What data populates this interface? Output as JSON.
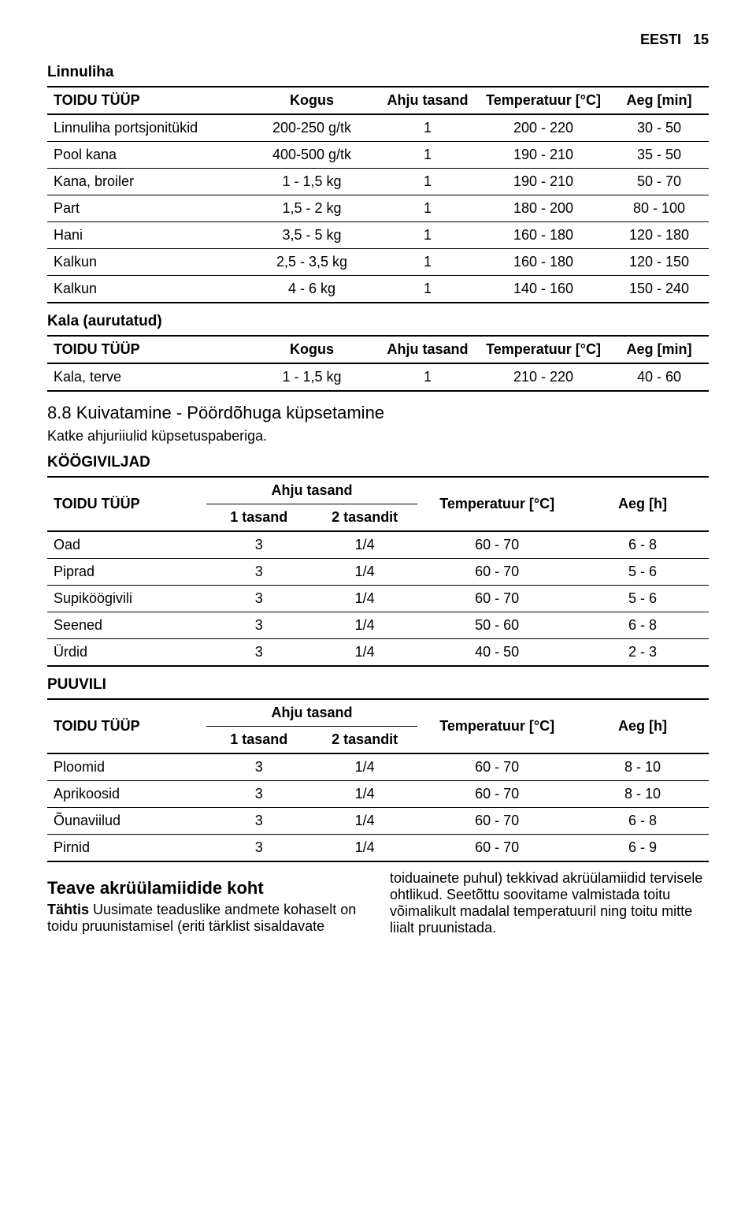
{
  "header": {
    "lang": "EESTI",
    "page": "15"
  },
  "linnuliha": {
    "title": "Linnuliha",
    "cols": [
      "TOIDU TÜÜP",
      "Kogus",
      "Ahju tasand",
      "Temperatuur [°C]",
      "Aeg [min]"
    ],
    "rows": [
      [
        "Linnuliha portsjonitükid",
        "200-250 g/tk",
        "1",
        "200 - 220",
        "30 - 50"
      ],
      [
        "Pool kana",
        "400-500 g/tk",
        "1",
        "190 - 210",
        "35 - 50"
      ],
      [
        "Kana, broiler",
        "1 - 1,5 kg",
        "1",
        "190 - 210",
        "50 - 70"
      ],
      [
        "Part",
        "1,5 - 2 kg",
        "1",
        "180 - 200",
        "80 - 100"
      ],
      [
        "Hani",
        "3,5 - 5 kg",
        "1",
        "160 - 180",
        "120 - 180"
      ],
      [
        "Kalkun",
        "2,5 - 3,5 kg",
        "1",
        "160 - 180",
        "120 - 150"
      ],
      [
        "Kalkun",
        "4 - 6 kg",
        "1",
        "140 - 160",
        "150 - 240"
      ]
    ]
  },
  "kala": {
    "title": "Kala (aurutatud)",
    "cols": [
      "TOIDU TÜÜP",
      "Kogus",
      "Ahju tasand",
      "Temperatuur [°C]",
      "Aeg [min]"
    ],
    "rows": [
      [
        "Kala, terve",
        "1 - 1,5 kg",
        "1",
        "210 - 220",
        "40 - 60"
      ]
    ]
  },
  "section88": {
    "title": "8.8 Kuivatamine - Pöördõhuga küpsetamine",
    "note": "Katke ahjuriiulid küpsetuspaberiga."
  },
  "koogiviljad": {
    "title": "KÖÖGIVILJAD",
    "cols": {
      "type": "TOIDU TÜÜP",
      "level": "Ahju tasand",
      "lvl1": "1 tasand",
      "lvl2": "2 tasandit",
      "temp": "Temperatuur [°C]",
      "time": "Aeg [h]"
    },
    "rows": [
      [
        "Oad",
        "3",
        "1/4",
        "60 - 70",
        "6 - 8"
      ],
      [
        "Piprad",
        "3",
        "1/4",
        "60 - 70",
        "5 - 6"
      ],
      [
        "Supiköögivili",
        "3",
        "1/4",
        "60 - 70",
        "5 - 6"
      ],
      [
        "Seened",
        "3",
        "1/4",
        "50 - 60",
        "6 - 8"
      ],
      [
        "Ürdid",
        "3",
        "1/4",
        "40 - 50",
        "2 - 3"
      ]
    ]
  },
  "puuvili": {
    "title": "PUUVILI",
    "cols": {
      "type": "TOIDU TÜÜP",
      "level": "Ahju tasand",
      "lvl1": "1 tasand",
      "lvl2": "2 tasandit",
      "temp": "Temperatuur [°C]",
      "time": "Aeg [h]"
    },
    "rows": [
      [
        "Ploomid",
        "3",
        "1/4",
        "60 - 70",
        "8 - 10"
      ],
      [
        "Aprikoosid",
        "3",
        "1/4",
        "60 - 70",
        "8 - 10"
      ],
      [
        "Õunaviilud",
        "3",
        "1/4",
        "60 - 70",
        "6 - 8"
      ],
      [
        "Pirnid",
        "3",
        "1/4",
        "60 - 70",
        "6 - 9"
      ]
    ]
  },
  "teave": {
    "title": "Teave akrüülamiidide koht",
    "leftBold": "Tähtis",
    "left": " Uusimate teaduslike andmete kohaselt on toidu pruunistamisel (eriti tärklist sisaldavate",
    "right": "toiduainete puhul) tekkivad akrüülamiidid tervisele ohtlikud. Seetõttu soovitame valmistada toitu võimalikult madalal temperatuuril ning toitu mitte liialt pruunistada."
  },
  "style": {
    "col_widths_5": [
      "30%",
      "20%",
      "15%",
      "20%",
      "15%"
    ],
    "col_widths_6": [
      "24%",
      "16%",
      "16%",
      "24%",
      "20%"
    ],
    "text_color": "#000000",
    "bg_color": "#ffffff",
    "border_color": "#000000",
    "font_size_body": 18,
    "font_size_title": 19,
    "font_size_h88": 22
  }
}
